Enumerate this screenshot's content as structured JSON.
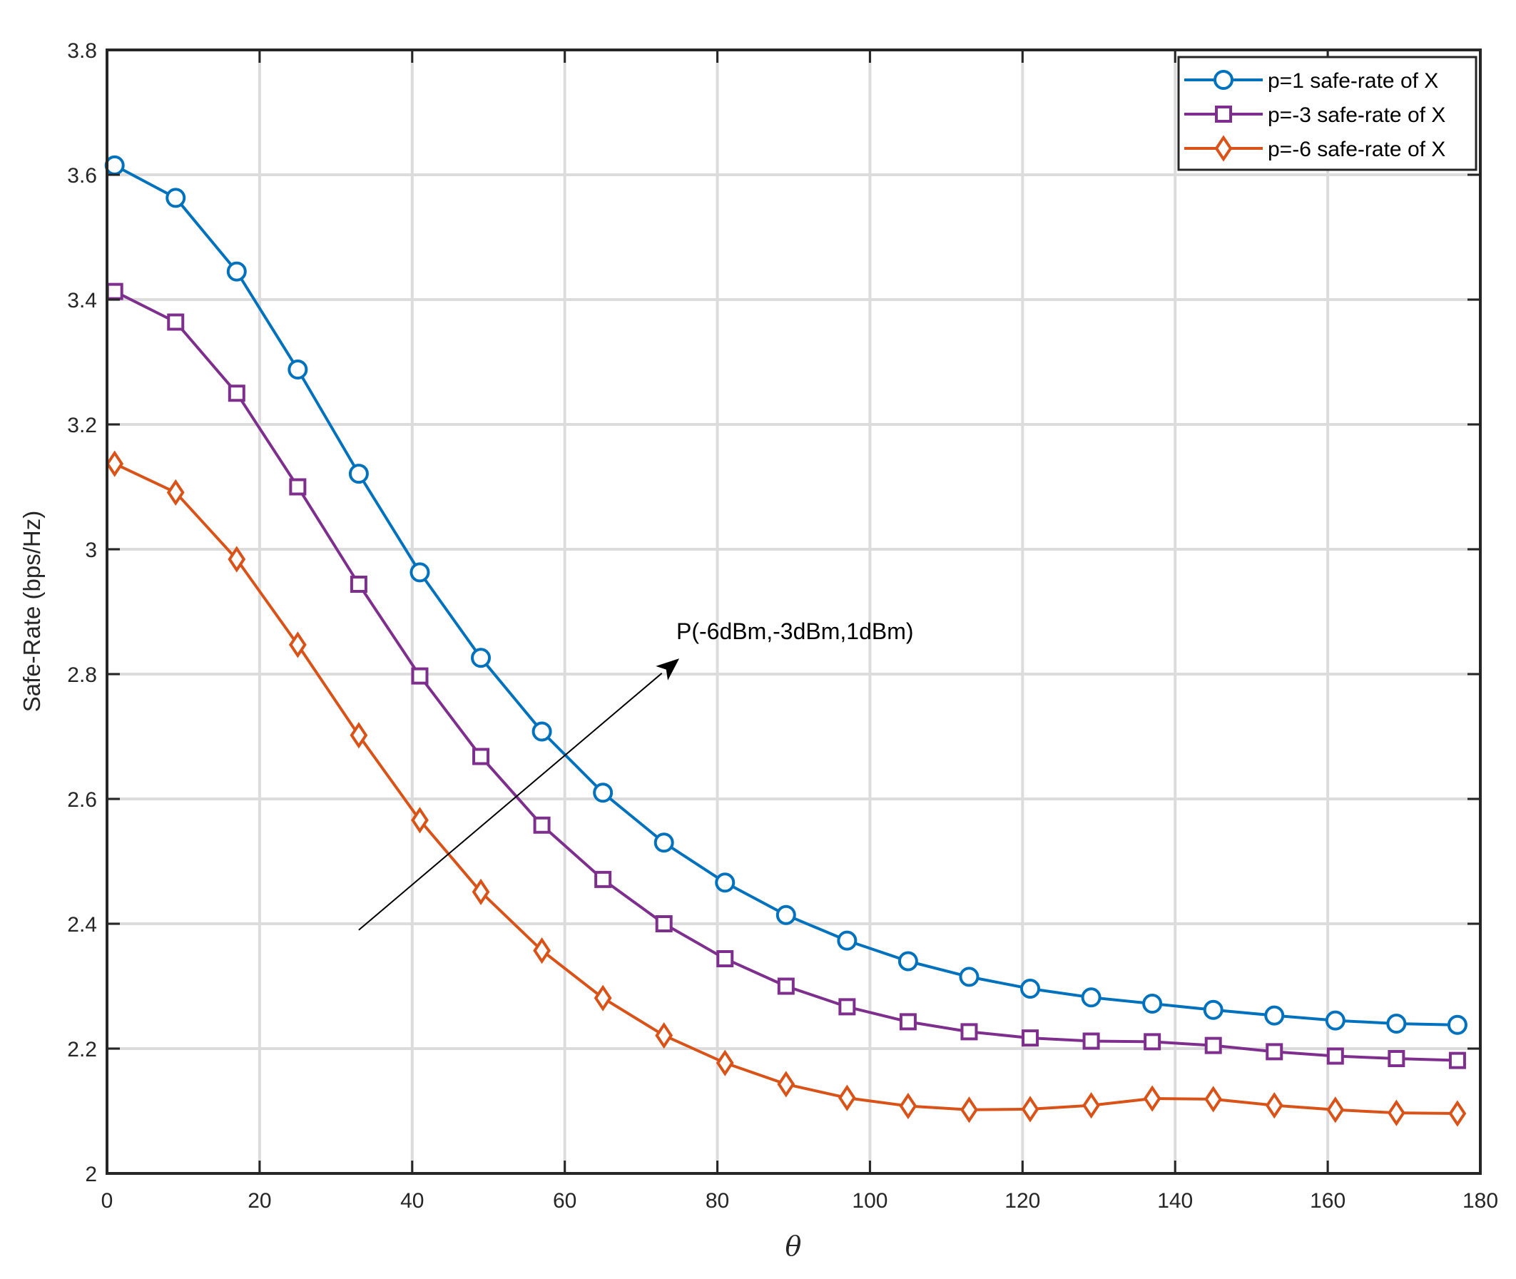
{
  "chart_data": {
    "type": "line",
    "title": "",
    "xlabel": "θ",
    "ylabel": "Safe-Rate (bps/Hz)",
    "xlim": [
      0,
      180
    ],
    "ylim": [
      2,
      3.8
    ],
    "xticks": [
      0,
      20,
      40,
      60,
      80,
      100,
      120,
      140,
      160,
      180
    ],
    "yticks": [
      2,
      2.2,
      2.4,
      2.6,
      2.8,
      3,
      3.2,
      3.4,
      3.6,
      3.8
    ],
    "xtick_labels": [
      "0",
      "20",
      "40",
      "60",
      "80",
      "100",
      "120",
      "140",
      "160",
      "180"
    ],
    "ytick_labels": [
      "2",
      "2.2",
      "2.4",
      "2.6",
      "2.8",
      "3",
      "3.2",
      "3.4",
      "3.6",
      "3.8"
    ],
    "grid": true,
    "legend_position": "top-right",
    "x": [
      1,
      9,
      17,
      25,
      33,
      41,
      49,
      57,
      65,
      73,
      81,
      89,
      97,
      105,
      113,
      121,
      129,
      137,
      145,
      153,
      161,
      169,
      177
    ],
    "series": [
      {
        "name": "p=1 safe-rate of X",
        "color": "#0072BD",
        "marker": "circle",
        "values": [
          3.615,
          3.563,
          3.445,
          3.288,
          3.121,
          2.963,
          2.826,
          2.708,
          2.61,
          2.53,
          2.466,
          2.414,
          2.373,
          2.34,
          2.315,
          2.296,
          2.282,
          2.272,
          2.262,
          2.253,
          2.245,
          2.24,
          2.238
        ]
      },
      {
        "name": "p=-3 safe-rate of X",
        "color": "#7E2F8E",
        "marker": "square",
        "values": [
          3.413,
          3.364,
          3.25,
          3.1,
          2.944,
          2.797,
          2.668,
          2.558,
          2.471,
          2.4,
          2.344,
          2.3,
          2.267,
          2.243,
          2.227,
          2.217,
          2.212,
          2.211,
          2.205,
          2.195,
          2.188,
          2.184,
          2.181
        ]
      },
      {
        "name": "p=-6 safe-rate of X",
        "color": "#D95319",
        "marker": "diamond",
        "values": [
          3.137,
          3.091,
          2.984,
          2.847,
          2.702,
          2.566,
          2.451,
          2.357,
          2.281,
          2.221,
          2.177,
          2.143,
          2.121,
          2.108,
          2.102,
          2.103,
          2.109,
          2.12,
          2.119,
          2.109,
          2.102,
          2.097,
          2.096
        ]
      }
    ],
    "annotation": {
      "text": "P(-6dBm,-3dBm,1dBm)",
      "arrow_from": [
        33,
        2.39
      ],
      "arrow_to": [
        75,
        2.825
      ]
    }
  }
}
